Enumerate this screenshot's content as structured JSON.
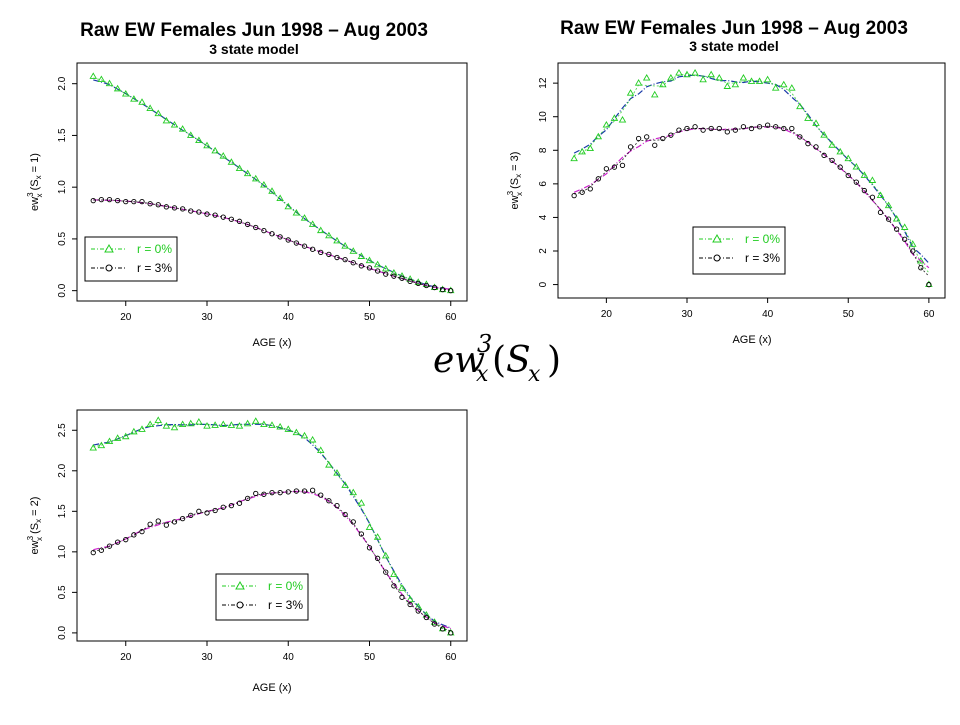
{
  "formula": {
    "base": "ew",
    "superscript": "3",
    "subscript_x": "x",
    "paren_open": "(",
    "paren_var": "S",
    "paren_sub": "x",
    "paren_close": ")"
  },
  "legend_colors": {
    "r0": "#22cc22",
    "r3": "#000000"
  },
  "chart_data": [
    {
      "type": "line",
      "title": "Raw EW Females Jun 1998 – Aug 2003",
      "subtitle": "3 state model",
      "xlabel": "AGE (x)",
      "ylabel": "ew_x^3 (S_x = 1)",
      "ylabel_parts": {
        "base": "ew",
        "sup": "3",
        "sub": "x",
        "rest": " (S",
        "rest_sub": "x",
        "tail": " = 1)"
      },
      "xlim": [
        14,
        62
      ],
      "ylim": [
        -0.1,
        2.2
      ],
      "xticks": [
        20,
        30,
        40,
        50,
        60
      ],
      "yticks": [
        0.0,
        0.5,
        1.0,
        1.5,
        2.0
      ],
      "ytick_labels": [
        "0.0",
        "0.5",
        "1.0",
        "1.5",
        "2.0"
      ],
      "legend_position": "bottom-left",
      "series": [
        {
          "name": "r = 0%",
          "marker": "triangle",
          "color": "#22cc22",
          "smooth_color": "#1a3aa8",
          "x": [
            16,
            17,
            18,
            19,
            20,
            21,
            22,
            23,
            24,
            25,
            26,
            27,
            28,
            29,
            30,
            31,
            32,
            33,
            34,
            35,
            36,
            37,
            38,
            39,
            40,
            41,
            42,
            43,
            44,
            45,
            46,
            47,
            48,
            49,
            50,
            51,
            52,
            53,
            54,
            55,
            56,
            57,
            58,
            59,
            60
          ],
          "y": [
            2.07,
            2.04,
            2.0,
            1.95,
            1.9,
            1.85,
            1.82,
            1.76,
            1.71,
            1.64,
            1.6,
            1.56,
            1.5,
            1.45,
            1.4,
            1.35,
            1.3,
            1.24,
            1.18,
            1.13,
            1.08,
            1.02,
            0.96,
            0.89,
            0.81,
            0.75,
            0.7,
            0.64,
            0.58,
            0.53,
            0.48,
            0.43,
            0.38,
            0.33,
            0.29,
            0.25,
            0.21,
            0.17,
            0.14,
            0.11,
            0.08,
            0.06,
            0.03,
            0.01,
            0.0
          ]
        },
        {
          "name": "r = 3%",
          "marker": "circle",
          "color": "#000000",
          "smooth_color": "#cc22cc",
          "x": [
            16,
            17,
            18,
            19,
            20,
            21,
            22,
            23,
            24,
            25,
            26,
            27,
            28,
            29,
            30,
            31,
            32,
            33,
            34,
            35,
            36,
            37,
            38,
            39,
            40,
            41,
            42,
            43,
            44,
            45,
            46,
            47,
            48,
            49,
            50,
            51,
            52,
            53,
            54,
            55,
            56,
            57,
            58,
            59,
            60
          ],
          "y": [
            0.87,
            0.88,
            0.88,
            0.87,
            0.86,
            0.86,
            0.86,
            0.84,
            0.83,
            0.81,
            0.8,
            0.79,
            0.77,
            0.76,
            0.74,
            0.73,
            0.71,
            0.69,
            0.67,
            0.64,
            0.61,
            0.58,
            0.55,
            0.52,
            0.49,
            0.46,
            0.43,
            0.4,
            0.37,
            0.35,
            0.32,
            0.3,
            0.27,
            0.24,
            0.22,
            0.19,
            0.16,
            0.14,
            0.12,
            0.09,
            0.07,
            0.05,
            0.03,
            0.01,
            0.0
          ]
        }
      ]
    },
    {
      "type": "line",
      "title": "Raw EW Females Jun 1998 – Aug 2003",
      "subtitle": "3 state model",
      "xlabel": "AGE (x)",
      "ylabel": "ew_x^3 (S_x = 3)",
      "ylabel_parts": {
        "base": "ew",
        "sup": "3",
        "sub": "x",
        "rest": " (S",
        "rest_sub": "x",
        "tail": " = 3)"
      },
      "xlim": [
        14,
        62
      ],
      "ylim": [
        -0.8,
        13.2
      ],
      "xticks": [
        20,
        30,
        40,
        50,
        60
      ],
      "yticks": [
        0,
        2,
        4,
        6,
        8,
        10,
        12
      ],
      "ytick_labels": [
        "0",
        "2",
        "4",
        "6",
        "8",
        "10",
        "12"
      ],
      "legend_position": "bottom-center",
      "series": [
        {
          "name": "r = 0%",
          "marker": "triangle",
          "color": "#22cc22",
          "smooth_color": "#1a3aa8",
          "x": [
            16,
            17,
            18,
            19,
            20,
            21,
            22,
            23,
            24,
            25,
            26,
            27,
            28,
            29,
            30,
            31,
            32,
            33,
            34,
            35,
            36,
            37,
            38,
            39,
            40,
            41,
            42,
            43,
            44,
            45,
            46,
            47,
            48,
            49,
            50,
            51,
            52,
            53,
            54,
            55,
            56,
            57,
            58,
            59,
            60
          ],
          "y": [
            7.5,
            7.9,
            8.1,
            8.8,
            9.5,
            9.9,
            9.8,
            11.4,
            12.0,
            12.3,
            11.3,
            11.9,
            12.3,
            12.6,
            12.5,
            12.6,
            12.2,
            12.5,
            12.3,
            11.8,
            11.9,
            12.3,
            12.1,
            12.1,
            12.2,
            11.7,
            11.9,
            11.7,
            10.6,
            9.9,
            9.6,
            8.9,
            8.3,
            7.9,
            7.5,
            7.0,
            6.5,
            6.2,
            5.3,
            4.7,
            3.9,
            3.4,
            2.4,
            1.4,
            0.0
          ]
        },
        {
          "name": "r = 3%",
          "marker": "circle",
          "color": "#000000",
          "smooth_color": "#cc22cc",
          "x": [
            16,
            17,
            18,
            19,
            20,
            21,
            22,
            23,
            24,
            25,
            26,
            27,
            28,
            29,
            30,
            31,
            32,
            33,
            34,
            35,
            36,
            37,
            38,
            39,
            40,
            41,
            42,
            43,
            44,
            45,
            46,
            47,
            48,
            49,
            50,
            51,
            52,
            53,
            54,
            55,
            56,
            57,
            58,
            59,
            60
          ],
          "y": [
            5.3,
            5.5,
            5.7,
            6.3,
            6.9,
            7.0,
            7.1,
            8.2,
            8.7,
            8.8,
            8.3,
            8.7,
            8.9,
            9.2,
            9.3,
            9.4,
            9.2,
            9.3,
            9.3,
            9.1,
            9.2,
            9.4,
            9.3,
            9.4,
            9.5,
            9.4,
            9.3,
            9.3,
            8.8,
            8.4,
            8.2,
            7.7,
            7.4,
            7.0,
            6.5,
            6.1,
            5.6,
            5.2,
            4.3,
            3.9,
            3.3,
            2.7,
            2.0,
            1.0,
            0.0
          ]
        }
      ]
    },
    {
      "type": "line",
      "title": "",
      "subtitle": "",
      "xlabel": "AGE (x)",
      "ylabel": "ew_x^3 (S_x = 2)",
      "ylabel_parts": {
        "base": "ew",
        "sup": "3",
        "sub": "x",
        "rest": " (S",
        "rest_sub": "x",
        "tail": " = 2)"
      },
      "xlim": [
        14,
        62
      ],
      "ylim": [
        -0.1,
        2.75
      ],
      "xticks": [
        20,
        30,
        40,
        50,
        60
      ],
      "yticks": [
        0.0,
        0.5,
        1.0,
        1.5,
        2.0,
        2.5
      ],
      "ytick_labels": [
        "0.0",
        "0.5",
        "1.0",
        "1.5",
        "2.0",
        "2.5"
      ],
      "legend_position": "bottom-center",
      "series": [
        {
          "name": "r = 0%",
          "marker": "triangle",
          "color": "#22cc22",
          "smooth_color": "#1a3aa8",
          "x": [
            16,
            17,
            18,
            19,
            20,
            21,
            22,
            23,
            24,
            25,
            26,
            27,
            28,
            29,
            30,
            31,
            32,
            33,
            34,
            35,
            36,
            37,
            38,
            39,
            40,
            41,
            42,
            43,
            44,
            45,
            46,
            47,
            48,
            49,
            50,
            51,
            52,
            53,
            54,
            55,
            56,
            57,
            58,
            59,
            60
          ],
          "y": [
            2.28,
            2.31,
            2.36,
            2.4,
            2.42,
            2.48,
            2.51,
            2.57,
            2.62,
            2.55,
            2.53,
            2.57,
            2.58,
            2.6,
            2.55,
            2.56,
            2.57,
            2.56,
            2.55,
            2.58,
            2.61,
            2.57,
            2.56,
            2.54,
            2.51,
            2.47,
            2.43,
            2.38,
            2.25,
            2.07,
            1.97,
            1.82,
            1.73,
            1.6,
            1.3,
            1.18,
            0.95,
            0.72,
            0.55,
            0.41,
            0.32,
            0.22,
            0.13,
            0.05,
            0.0
          ]
        },
        {
          "name": "r = 3%",
          "marker": "circle",
          "color": "#000000",
          "smooth_color": "#cc22cc",
          "x": [
            16,
            17,
            18,
            19,
            20,
            21,
            22,
            23,
            24,
            25,
            26,
            27,
            28,
            29,
            30,
            31,
            32,
            33,
            34,
            35,
            36,
            37,
            38,
            39,
            40,
            41,
            42,
            43,
            44,
            45,
            46,
            47,
            48,
            49,
            50,
            51,
            52,
            53,
            54,
            55,
            56,
            57,
            58,
            59,
            60
          ],
          "y": [
            0.99,
            1.02,
            1.07,
            1.12,
            1.15,
            1.21,
            1.25,
            1.34,
            1.38,
            1.33,
            1.37,
            1.41,
            1.45,
            1.5,
            1.48,
            1.51,
            1.55,
            1.57,
            1.6,
            1.66,
            1.72,
            1.71,
            1.73,
            1.73,
            1.74,
            1.75,
            1.75,
            1.76,
            1.7,
            1.63,
            1.57,
            1.46,
            1.37,
            1.22,
            1.05,
            0.92,
            0.75,
            0.58,
            0.44,
            0.35,
            0.27,
            0.19,
            0.11,
            0.05,
            0.0
          ]
        }
      ]
    }
  ]
}
